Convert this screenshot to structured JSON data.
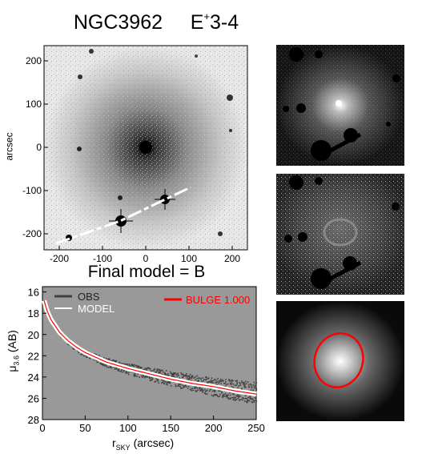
{
  "header": {
    "galaxy": "NGC3962",
    "morph_prefix": "E",
    "morph_sup": "+",
    "morph_suffix": "3-4"
  },
  "image_panel": {
    "ylabel": "arcsec",
    "x_ticks": [
      "-200",
      "-100",
      "0",
      "100",
      "200"
    ],
    "y_ticks": [
      "200",
      "100",
      "0",
      "-100",
      "-200"
    ]
  },
  "model_caption": "Final model = B",
  "chart_data": {
    "type": "scatter",
    "xlabel_main": "r",
    "xlabel_sub": "SKY",
    "xlabel_unit": " (arcsec)",
    "ylabel_main": "μ",
    "ylabel_sub": "3.6",
    "ylabel_unit": " (AB)",
    "xlim": [
      0,
      250
    ],
    "ylim": [
      28,
      15.5
    ],
    "x_ticks": [
      "0",
      "50",
      "100",
      "150",
      "200",
      "250"
    ],
    "y_ticks": [
      "16",
      "18",
      "20",
      "22",
      "24",
      "26",
      "28"
    ],
    "legend": {
      "obs": "OBS",
      "model": "MODEL",
      "bulge": "BULGE",
      "bulge_value": "1.000"
    },
    "series": [
      {
        "name": "OBS",
        "color": "#404040",
        "x": [
          2,
          5,
          10,
          20,
          30,
          40,
          50,
          75,
          100,
          125,
          150,
          175,
          200,
          225,
          250
        ],
        "y": [
          16.9,
          17.8,
          18.7,
          19.9,
          20.7,
          21.3,
          21.8,
          22.6,
          23.2,
          23.7,
          24.1,
          24.5,
          24.9,
          25.2,
          25.5
        ]
      },
      {
        "name": "MODEL",
        "color": "#ffffff",
        "x": [
          2,
          5,
          10,
          20,
          30,
          40,
          50,
          75,
          100,
          125,
          150,
          175,
          200,
          225,
          250
        ],
        "y": [
          16.8,
          17.7,
          18.6,
          19.8,
          20.6,
          21.2,
          21.7,
          22.6,
          23.2,
          23.7,
          24.2,
          24.6,
          24.9,
          25.3,
          25.6
        ]
      },
      {
        "name": "BULGE",
        "color": "#ff0000",
        "x": [
          2,
          5,
          10,
          20,
          30,
          40,
          50,
          75,
          100,
          125,
          150,
          175,
          200,
          225,
          250
        ],
        "y": [
          16.8,
          17.7,
          18.6,
          19.8,
          20.6,
          21.2,
          21.7,
          22.6,
          23.2,
          23.7,
          24.2,
          24.6,
          24.9,
          25.3,
          25.6
        ]
      }
    ]
  },
  "colors": {
    "plot_bg": "#999999",
    "bulge": "#ff0000"
  }
}
